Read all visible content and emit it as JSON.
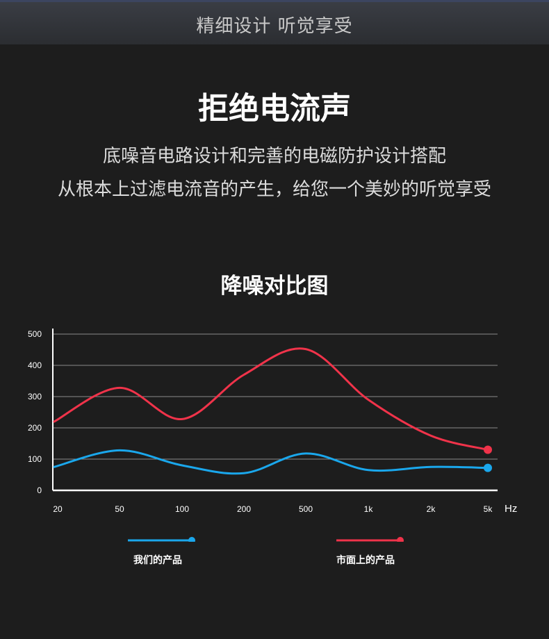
{
  "banner": {
    "text": "精细设计 听觉享受"
  },
  "headline": "拒绝电流声",
  "description": {
    "line1": "底噪音电路设计和完善的电磁防护设计搭配",
    "line2": "从根本上过滤电流音的产生，给您一个美妙的听觉享受"
  },
  "chart_data": {
    "type": "line",
    "title": "降噪对比图",
    "x": [
      "20",
      "50",
      "100",
      "200",
      "500",
      "1k",
      "2k",
      "5k"
    ],
    "xunit": "Hz",
    "yticks": [
      0,
      100,
      200,
      300,
      400,
      500
    ],
    "ylim": [
      0,
      500
    ],
    "grid": true,
    "legend_position": "bottom",
    "series": [
      {
        "name": "我们的产品",
        "color": "#1aa7ec",
        "x": [
          20,
          50,
          100,
          200,
          500,
          1000,
          2000,
          5000
        ],
        "values": [
          75,
          128,
          80,
          55,
          118,
          65,
          75,
          72
        ]
      },
      {
        "name": "市面上的产品",
        "color": "#f0334a",
        "x": [
          20,
          50,
          100,
          200,
          500,
          1000,
          2000,
          5000
        ],
        "values": [
          220,
          328,
          228,
          370,
          452,
          290,
          175,
          130
        ]
      }
    ]
  }
}
